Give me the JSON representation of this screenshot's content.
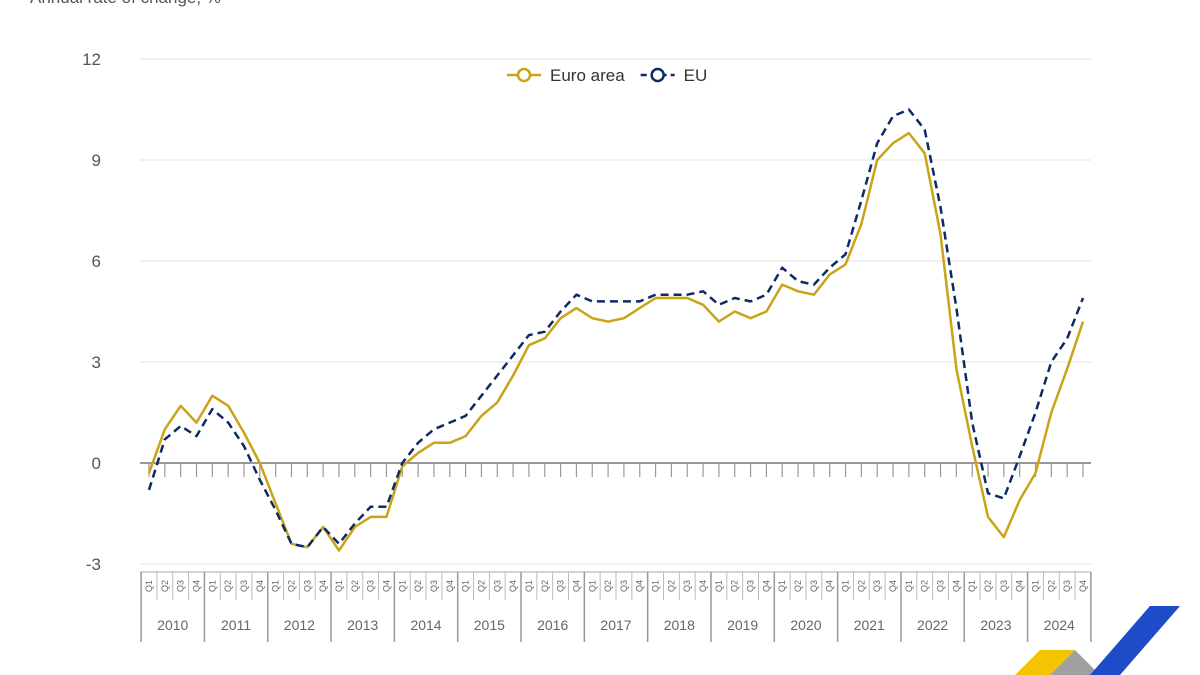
{
  "chart_data": {
    "type": "line",
    "ylabel": "Annual rate of change, %",
    "ylim": [
      -3,
      12
    ],
    "yticks": [
      -3,
      0,
      3,
      6,
      9,
      12
    ],
    "grid": true,
    "legend": "top-center",
    "years": [
      "2010",
      "2011",
      "2012",
      "2013",
      "2014",
      "2015",
      "2016",
      "2017",
      "2018",
      "2019",
      "2020",
      "2021",
      "2022",
      "2023",
      "2024"
    ],
    "quarters": [
      "Q1",
      "Q2",
      "Q3",
      "Q4"
    ],
    "series": [
      {
        "name": "Euro area",
        "color": "#c9a417",
        "style": "solid",
        "values": [
          -0.3,
          1.0,
          1.7,
          1.2,
          2.0,
          1.7,
          0.9,
          0.0,
          -1.2,
          -2.4,
          -2.5,
          -1.9,
          -2.6,
          -1.9,
          -1.6,
          -1.6,
          -0.1,
          0.3,
          0.6,
          0.6,
          0.8,
          1.4,
          1.8,
          2.6,
          3.5,
          3.7,
          4.3,
          4.6,
          4.3,
          4.2,
          4.3,
          4.6,
          4.9,
          4.9,
          4.9,
          4.7,
          4.2,
          4.5,
          4.3,
          4.5,
          5.3,
          5.1,
          5.0,
          5.6,
          5.9,
          7.1,
          9.0,
          9.5,
          9.8,
          9.2,
          6.8,
          2.8,
          0.5,
          -1.6,
          -2.2,
          -1.1,
          -0.3,
          1.5,
          2.8,
          4.2
        ]
      },
      {
        "name": "EU",
        "color": "#0e2a63",
        "style": "dashed",
        "values": [
          -0.8,
          0.7,
          1.1,
          0.8,
          1.6,
          1.2,
          0.5,
          -0.5,
          -1.4,
          -2.4,
          -2.5,
          -1.9,
          -2.4,
          -1.8,
          -1.3,
          -1.3,
          0.0,
          0.6,
          1.0,
          1.2,
          1.4,
          2.0,
          2.6,
          3.2,
          3.8,
          3.9,
          4.5,
          5.0,
          4.8,
          4.8,
          4.8,
          4.8,
          5.0,
          5.0,
          5.0,
          5.1,
          4.7,
          4.9,
          4.8,
          5.0,
          5.8,
          5.4,
          5.3,
          5.8,
          6.2,
          7.8,
          9.5,
          10.3,
          10.5,
          9.9,
          7.6,
          4.6,
          1.2,
          -0.9,
          -1.05,
          0.2,
          1.5,
          3.0,
          3.7,
          4.9
        ]
      }
    ]
  }
}
